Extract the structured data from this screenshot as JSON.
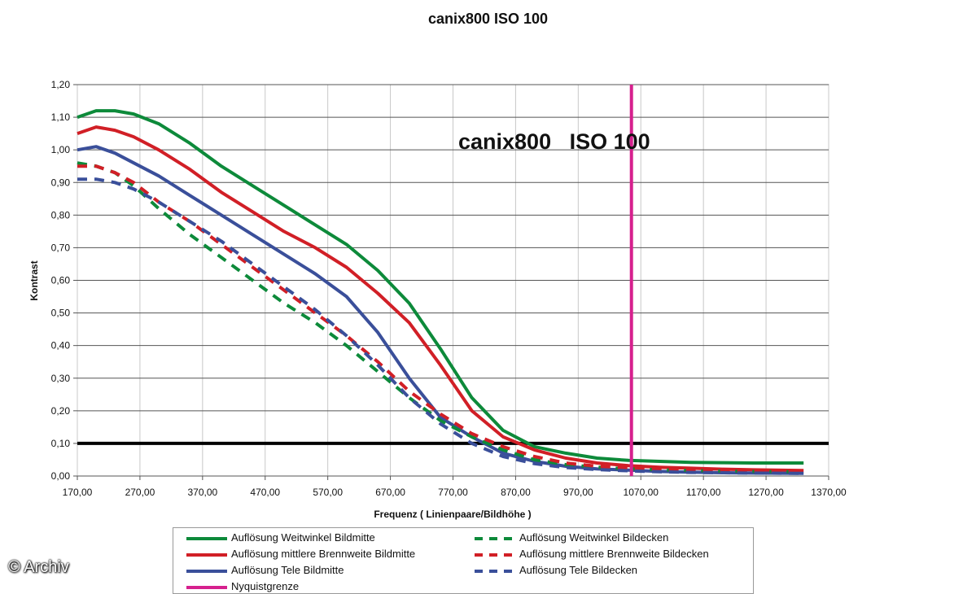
{
  "chart_data": {
    "type": "line",
    "title": "canix800   ISO 100",
    "annotation": "canix800   ISO 100",
    "xlabel": "Frequenz ( Linienpaare/Bildhöhe )",
    "ylabel": "Kontrast",
    "xlim": [
      170,
      1370
    ],
    "ylim": [
      0,
      1.2
    ],
    "x_ticks": [
      "170,00",
      "270,00",
      "370,00",
      "470,00",
      "570,00",
      "670,00",
      "770,00",
      "870,00",
      "970,00",
      "1070,00",
      "1170,00",
      "1270,00",
      "1370,00"
    ],
    "y_ticks": [
      "0,00",
      "0,10",
      "0,20",
      "0,30",
      "0,40",
      "0,50",
      "0,60",
      "0,70",
      "0,80",
      "0,90",
      "1,00",
      "1,10",
      "1,20"
    ],
    "grid": true,
    "reference_line_y": 0.1,
    "series": [
      {
        "name": "Auflösung Weitwinkel Bildmitte",
        "color": "#0d8a3a",
        "dash": false,
        "x": [
          170,
          200,
          230,
          260,
          300,
          350,
          400,
          450,
          500,
          550,
          600,
          650,
          700,
          750,
          800,
          850,
          900,
          950,
          1000,
          1050,
          1100,
          1150,
          1200,
          1250,
          1330
        ],
        "y": [
          1.1,
          1.12,
          1.12,
          1.11,
          1.08,
          1.02,
          0.95,
          0.89,
          0.83,
          0.77,
          0.71,
          0.63,
          0.53,
          0.39,
          0.24,
          0.14,
          0.09,
          0.07,
          0.055,
          0.048,
          0.045,
          0.042,
          0.041,
          0.04,
          0.04
        ]
      },
      {
        "name": "Auflösung mittlere Brennweite Bildmitte",
        "color": "#d11f26",
        "dash": false,
        "x": [
          170,
          200,
          230,
          260,
          300,
          350,
          400,
          450,
          500,
          550,
          600,
          650,
          700,
          750,
          800,
          850,
          900,
          950,
          1000,
          1050,
          1100,
          1150,
          1200,
          1250,
          1330
        ],
        "y": [
          1.05,
          1.07,
          1.06,
          1.04,
          1.0,
          0.94,
          0.87,
          0.81,
          0.75,
          0.7,
          0.64,
          0.56,
          0.47,
          0.34,
          0.2,
          0.12,
          0.08,
          0.055,
          0.04,
          0.032,
          0.027,
          0.024,
          0.021,
          0.019,
          0.017
        ]
      },
      {
        "name": "Auflösung Tele Bildmitte",
        "color": "#3a4f9a",
        "dash": false,
        "x": [
          170,
          200,
          230,
          260,
          300,
          350,
          400,
          450,
          500,
          550,
          600,
          650,
          700,
          750,
          800,
          850,
          900,
          950,
          1000,
          1050,
          1100,
          1150,
          1200,
          1250,
          1330
        ],
        "y": [
          1.0,
          1.01,
          0.99,
          0.96,
          0.92,
          0.86,
          0.8,
          0.74,
          0.68,
          0.62,
          0.55,
          0.44,
          0.3,
          0.18,
          0.12,
          0.07,
          0.045,
          0.03,
          0.022,
          0.018,
          0.014,
          0.012,
          0.01,
          0.009,
          0.008
        ]
      },
      {
        "name": "Auflösung Weitwinkel Bildecken",
        "color": "#0d8a3a",
        "dash": true,
        "x": [
          170,
          200,
          230,
          260,
          300,
          350,
          400,
          450,
          500,
          550,
          600,
          650,
          700,
          750,
          800,
          850,
          900,
          950,
          1000,
          1050,
          1100,
          1150,
          1200,
          1250,
          1330
        ],
        "y": [
          0.96,
          0.95,
          0.93,
          0.89,
          0.82,
          0.74,
          0.67,
          0.6,
          0.53,
          0.47,
          0.4,
          0.32,
          0.24,
          0.17,
          0.12,
          0.08,
          0.05,
          0.035,
          0.027,
          0.022,
          0.019,
          0.017,
          0.015,
          0.014,
          0.013
        ]
      },
      {
        "name": "Auflösung mittlere Brennweite Bildecken",
        "color": "#d11f26",
        "dash": true,
        "x": [
          170,
          200,
          230,
          260,
          300,
          350,
          400,
          450,
          500,
          550,
          600,
          650,
          700,
          750,
          800,
          850,
          900,
          950,
          1000,
          1050,
          1100,
          1150,
          1200,
          1250,
          1330
        ],
        "y": [
          0.95,
          0.95,
          0.93,
          0.9,
          0.84,
          0.78,
          0.71,
          0.64,
          0.57,
          0.5,
          0.43,
          0.35,
          0.26,
          0.19,
          0.13,
          0.09,
          0.06,
          0.04,
          0.03,
          0.024,
          0.02,
          0.018,
          0.016,
          0.015,
          0.014
        ]
      },
      {
        "name": "Auflösung Tele Bildecken",
        "color": "#3a4f9a",
        "dash": true,
        "x": [
          170,
          200,
          230,
          260,
          300,
          350,
          400,
          450,
          500,
          550,
          600,
          650,
          700,
          750,
          800,
          850,
          900,
          950,
          1000,
          1050,
          1100,
          1150,
          1200,
          1250,
          1330
        ],
        "y": [
          0.91,
          0.91,
          0.9,
          0.88,
          0.84,
          0.78,
          0.72,
          0.65,
          0.58,
          0.51,
          0.43,
          0.34,
          0.24,
          0.16,
          0.1,
          0.06,
          0.038,
          0.026,
          0.02,
          0.016,
          0.013,
          0.011,
          0.01,
          0.009,
          0.008
        ]
      },
      {
        "name": "Nyquistgrenze",
        "color": "#d6208e",
        "dash": false,
        "vertical_x": 1055,
        "x": [
          1055,
          1055
        ],
        "y": [
          0,
          1.2
        ]
      }
    ]
  },
  "copyright": "© Archiv"
}
